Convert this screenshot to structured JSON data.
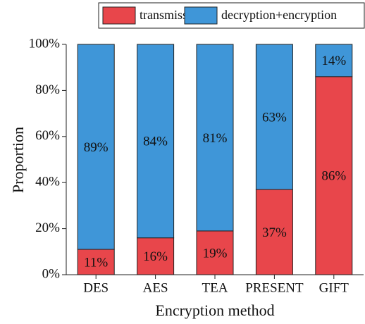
{
  "chart_data": {
    "type": "stacked_bar",
    "categories": [
      "DES",
      "AES",
      "TEA",
      "PRESENT",
      "GIFT"
    ],
    "series": [
      {
        "name": "transmission",
        "color": "#e8464b",
        "values": [
          11,
          16,
          19,
          37,
          86
        ],
        "value_labels": [
          "11%",
          "16%",
          "19%",
          "37%",
          "86%"
        ]
      },
      {
        "name": "decryption+encryption",
        "color": "#3f96d8",
        "values": [
          89,
          84,
          81,
          63,
          14
        ],
        "value_labels": [
          "89%",
          "84%",
          "81%",
          "63%",
          "14%"
        ]
      }
    ],
    "x_label": "Encryption method",
    "y_label": "Proportion",
    "ylim": [
      0,
      100
    ],
    "yticks": [
      {
        "value": 0,
        "label": "0%"
      },
      {
        "value": 20,
        "label": "20%"
      },
      {
        "value": 40,
        "label": "40%"
      },
      {
        "value": 60,
        "label": "60%"
      },
      {
        "value": 80,
        "label": "80%"
      },
      {
        "value": 100,
        "label": "100%"
      }
    ],
    "legend": "top"
  }
}
